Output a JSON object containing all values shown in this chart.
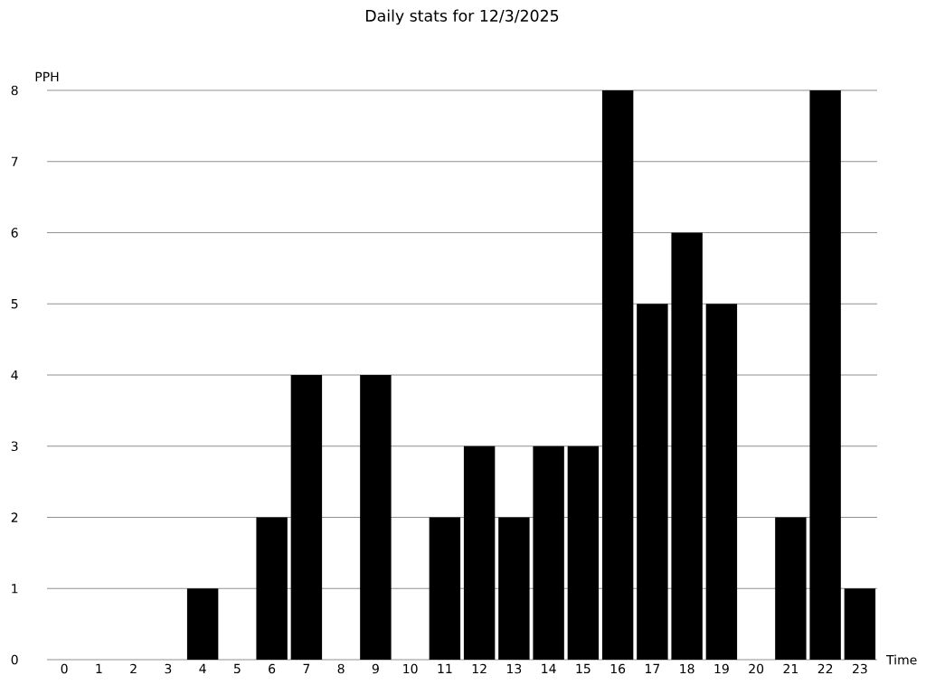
{
  "chart_data": {
    "type": "bar",
    "title": "Daily stats for 12/3/2025",
    "xlabel": "Time",
    "ylabel": "PPH",
    "categories": [
      "0",
      "1",
      "2",
      "3",
      "4",
      "5",
      "6",
      "7",
      "8",
      "9",
      "10",
      "11",
      "12",
      "13",
      "14",
      "15",
      "16",
      "17",
      "18",
      "19",
      "20",
      "21",
      "22",
      "23"
    ],
    "values": [
      0,
      0,
      0,
      0,
      1,
      0,
      2,
      4,
      0,
      4,
      0,
      2,
      3,
      2,
      3,
      3,
      8,
      5,
      6,
      5,
      0,
      2,
      8,
      1
    ],
    "color": "#000000",
    "ylim": [
      0,
      8
    ],
    "yticks": [
      0,
      1,
      2,
      3,
      4,
      5,
      6,
      7,
      8
    ],
    "grid": "y"
  }
}
